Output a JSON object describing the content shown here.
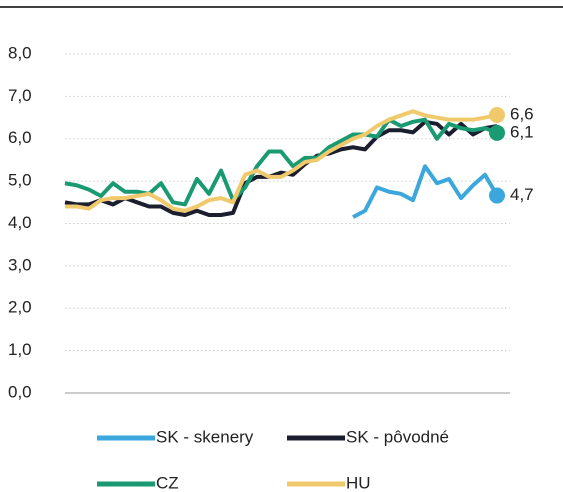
{
  "chart_data": {
    "type": "line",
    "categories": [
      null,
      null,
      null,
      null,
      null,
      null,
      null,
      null,
      null,
      null,
      null,
      null,
      null,
      null,
      null,
      null,
      null,
      null,
      null,
      null,
      null,
      null,
      null,
      null,
      null,
      null,
      null,
      null,
      null,
      null,
      null,
      null,
      null,
      null,
      null,
      null,
      null
    ],
    "series": [
      {
        "name": "SK - skenery",
        "color": "#3ba7dc",
        "values": [
          null,
          null,
          null,
          null,
          null,
          null,
          null,
          null,
          null,
          null,
          null,
          null,
          null,
          null,
          null,
          null,
          null,
          null,
          null,
          null,
          null,
          null,
          null,
          null,
          4.15,
          4.3,
          4.85,
          4.75,
          4.7,
          4.55,
          5.35,
          4.95,
          5.05,
          4.6,
          4.9,
          5.15,
          4.66
        ],
        "value_labels": [
          null,
          null,
          null,
          null,
          null,
          null,
          null,
          null,
          null,
          null,
          null,
          null,
          null,
          null,
          null,
          null,
          null,
          null,
          null,
          null,
          null,
          null,
          null,
          null,
          null,
          null,
          null,
          null,
          null,
          null,
          null,
          null,
          null,
          null,
          null,
          null,
          "4,7"
        ]
      },
      {
        "name": "SK - pôvodné",
        "color": "#1b1e2e",
        "values": [
          4.5,
          4.45,
          4.45,
          4.55,
          4.45,
          4.6,
          4.5,
          4.4,
          4.4,
          4.25,
          4.2,
          4.3,
          4.2,
          4.2,
          4.25,
          4.95,
          5.1,
          5.1,
          5.2,
          5.15,
          5.4,
          5.6,
          5.65,
          5.75,
          5.8,
          5.75,
          6.05,
          6.2,
          6.2,
          6.15,
          6.4,
          6.35,
          6.1,
          6.35,
          6.1,
          6.25,
          6.3
        ]
      },
      {
        "name": "CZ",
        "color": "#1a9a72",
        "values": [
          4.95,
          4.9,
          4.8,
          4.65,
          4.95,
          4.75,
          4.75,
          4.7,
          4.95,
          4.5,
          4.45,
          5.05,
          4.7,
          5.25,
          4.55,
          4.85,
          5.35,
          5.7,
          5.7,
          5.35,
          5.55,
          5.55,
          5.8,
          5.95,
          6.1,
          6.1,
          6.05,
          6.45,
          6.3,
          6.4,
          6.45,
          6.0,
          6.35,
          6.25,
          6.2,
          6.25,
          6.14
        ],
        "value_labels": [
          null,
          null,
          null,
          null,
          null,
          null,
          null,
          null,
          null,
          null,
          null,
          null,
          null,
          null,
          null,
          null,
          null,
          null,
          null,
          null,
          null,
          null,
          null,
          null,
          null,
          null,
          null,
          null,
          null,
          null,
          null,
          null,
          null,
          null,
          null,
          null,
          "6,1"
        ]
      },
      {
        "name": "HU",
        "color": "#f0c96c",
        "values": [
          4.4,
          4.4,
          4.35,
          4.55,
          4.6,
          4.6,
          4.65,
          4.7,
          4.55,
          4.35,
          4.3,
          4.4,
          4.55,
          4.6,
          4.5,
          5.15,
          5.25,
          5.1,
          5.1,
          5.25,
          5.45,
          5.5,
          5.7,
          5.85,
          6.0,
          6.1,
          6.3,
          6.45,
          6.55,
          6.65,
          6.55,
          6.5,
          6.45,
          6.45,
          6.45,
          6.5,
          6.56
        ],
        "value_labels": [
          null,
          null,
          null,
          null,
          null,
          null,
          null,
          null,
          null,
          null,
          null,
          null,
          null,
          null,
          null,
          null,
          null,
          null,
          null,
          null,
          null,
          null,
          null,
          null,
          null,
          null,
          null,
          null,
          null,
          null,
          null,
          null,
          null,
          null,
          null,
          null,
          "6,6"
        ]
      }
    ],
    "ylim": [
      0,
      8
    ],
    "yticks": [
      {
        "value": 0,
        "label": "0,0"
      },
      {
        "value": 1,
        "label": "1,0"
      },
      {
        "value": 2,
        "label": "2,0"
      },
      {
        "value": 3,
        "label": "3,0"
      },
      {
        "value": 4,
        "label": "4,0"
      },
      {
        "value": 5,
        "label": "5,0"
      },
      {
        "value": 6,
        "label": "6,0"
      },
      {
        "value": 7,
        "label": "7,0"
      },
      {
        "value": 8,
        "label": "8,0"
      }
    ],
    "grid": true,
    "legend": "bottom"
  }
}
